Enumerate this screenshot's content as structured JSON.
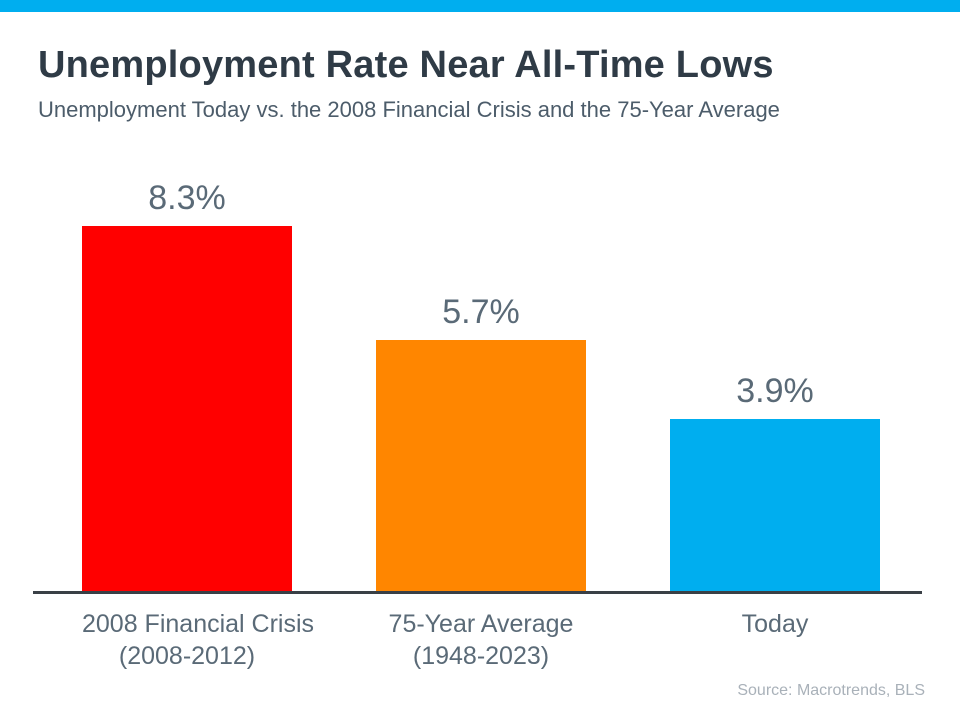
{
  "page": {
    "accent_strip_color": "#00AEEF"
  },
  "chart_data": {
    "type": "bar",
    "title": "Unemployment Rate Near All-Time Lows",
    "subtitle": "Unemployment Today vs. the 2008 Financial Crisis and the 75-Year Average",
    "categories": [
      "2008 Financial Crisis",
      "75-Year Average",
      "Today"
    ],
    "category_sublabels": [
      "(2008-2012)",
      "(1948-2023)",
      ""
    ],
    "values": [
      8.3,
      5.7,
      3.9
    ],
    "value_labels": [
      "8.3%",
      "5.7%",
      "3.9%"
    ],
    "bar_colors": [
      "#FF0000",
      "#FF8600",
      "#00AEEF"
    ],
    "xlabel": "",
    "ylabel": "",
    "ylim": [
      0,
      8.3
    ],
    "grid": false,
    "legend": false,
    "axis_line_color": "#3a4046",
    "source": "Source: Macrotrends, BLS"
  }
}
